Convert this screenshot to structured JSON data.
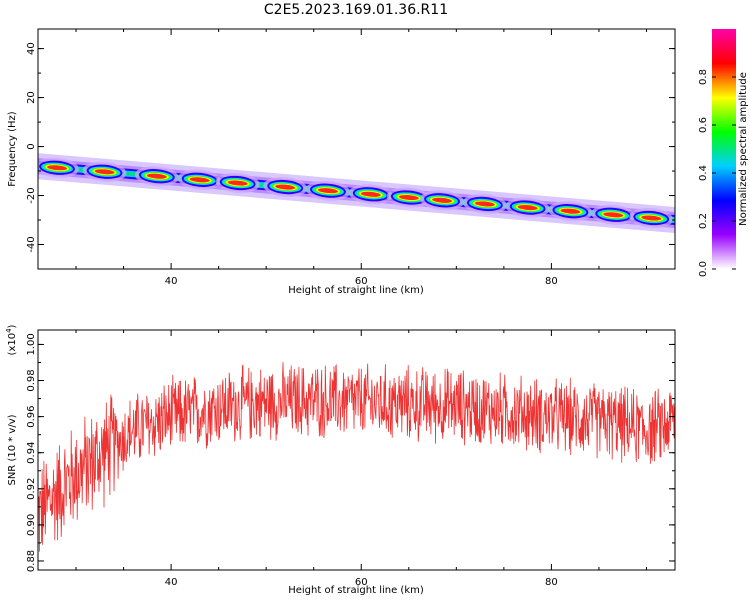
{
  "title": "C2E5.2023.169.01.36.R11",
  "chart_data": [
    {
      "type": "heatmap",
      "xlabel": "Height of straight line (km)",
      "ylabel": "Frequency (Hz)",
      "xlim": [
        26,
        93
      ],
      "ylim": [
        -50,
        48
      ],
      "x_ticks": [
        40,
        60,
        80
      ],
      "y_ticks": [
        -40,
        -20,
        0,
        20,
        40
      ],
      "ridge": {
        "x": [
          26,
          93
        ],
        "y": [
          -8,
          -30
        ]
      },
      "peaks_x": [
        28,
        33,
        38.5,
        43,
        47,
        52,
        56.5,
        61,
        65,
        68.5,
        73,
        77.5,
        82,
        86.5,
        90.5
      ],
      "colorbar": {
        "label": "Normalized spectral amplitude",
        "range": [
          0.0,
          1.0
        ],
        "ticks": [
          0.0,
          0.2,
          0.4,
          0.6,
          0.8
        ],
        "colors": [
          "#ffffff",
          "#9900ff",
          "#0000ff",
          "#00d0ff",
          "#00ff00",
          "#ffff00",
          "#ff0000",
          "#ff00aa"
        ]
      },
      "grid": false
    },
    {
      "type": "line",
      "xlabel": "Height of straight line (km)",
      "ylabel": "SNR (10 * v/v)",
      "scale_label": "(x10",
      "scale_exp": "4",
      "scale_close": ")",
      "xlim": [
        26,
        93
      ],
      "ylim": [
        0.875,
        1.008
      ],
      "x_ticks": [
        40,
        60,
        80
      ],
      "y_ticks": [
        0.88,
        0.9,
        0.92,
        0.94,
        0.96,
        0.98,
        1.0
      ],
      "trend": {
        "x": [
          26,
          28,
          30,
          32,
          34,
          36,
          40,
          45,
          50,
          55,
          60,
          65,
          70,
          75,
          80,
          85,
          88,
          90,
          92,
          93
        ],
        "y": [
          0.905,
          0.918,
          0.928,
          0.936,
          0.945,
          0.952,
          0.96,
          0.965,
          0.968,
          0.969,
          0.968,
          0.967,
          0.966,
          0.963,
          0.96,
          0.958,
          0.955,
          0.953,
          0.955,
          0.96
        ]
      },
      "noise_amplitude": 0.02,
      "series_color": "#ee3333",
      "grid": false
    }
  ]
}
